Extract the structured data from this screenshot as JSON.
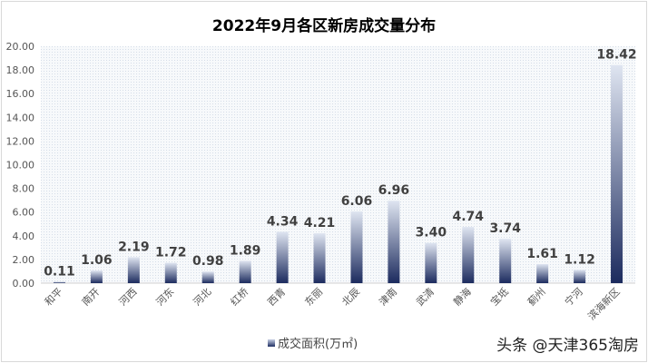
{
  "chart_data": {
    "type": "bar",
    "title": "2022年9月各区新房成交量分布",
    "categories": [
      "和平",
      "南开",
      "河西",
      "河东",
      "河北",
      "红桥",
      "西青",
      "东丽",
      "北辰",
      "津南",
      "武清",
      "静海",
      "宝坻",
      "蓟州",
      "宁河",
      "滨海新区"
    ],
    "series": [
      {
        "name": "成交面积(万㎡)",
        "values": [
          0.11,
          1.06,
          2.19,
          1.72,
          0.98,
          1.89,
          4.34,
          4.21,
          6.06,
          6.96,
          3.4,
          4.74,
          3.74,
          1.61,
          1.12,
          18.42
        ]
      }
    ],
    "data_labels": [
      "0.11",
      "1.06",
      "2.19",
      "1.72",
      "0.98",
      "1.89",
      "4.34",
      "4.21",
      "6.06",
      "6.96",
      "3.40",
      "4.74",
      "3.74",
      "1.61",
      "1.12",
      "18.42"
    ],
    "ylim": [
      0,
      20
    ],
    "yticks": [
      "0.00",
      "2.00",
      "4.00",
      "6.00",
      "8.00",
      "10.00",
      "12.00",
      "14.00",
      "16.00",
      "18.00",
      "20.00"
    ],
    "legend_position": "bottom",
    "grid": false,
    "colors": {
      "bar_top": "#dfe5f1",
      "bar_bottom": "#1c2b5e",
      "plot_bg": "#eef3f8"
    }
  },
  "watermark": "头条 @天津365淘房"
}
